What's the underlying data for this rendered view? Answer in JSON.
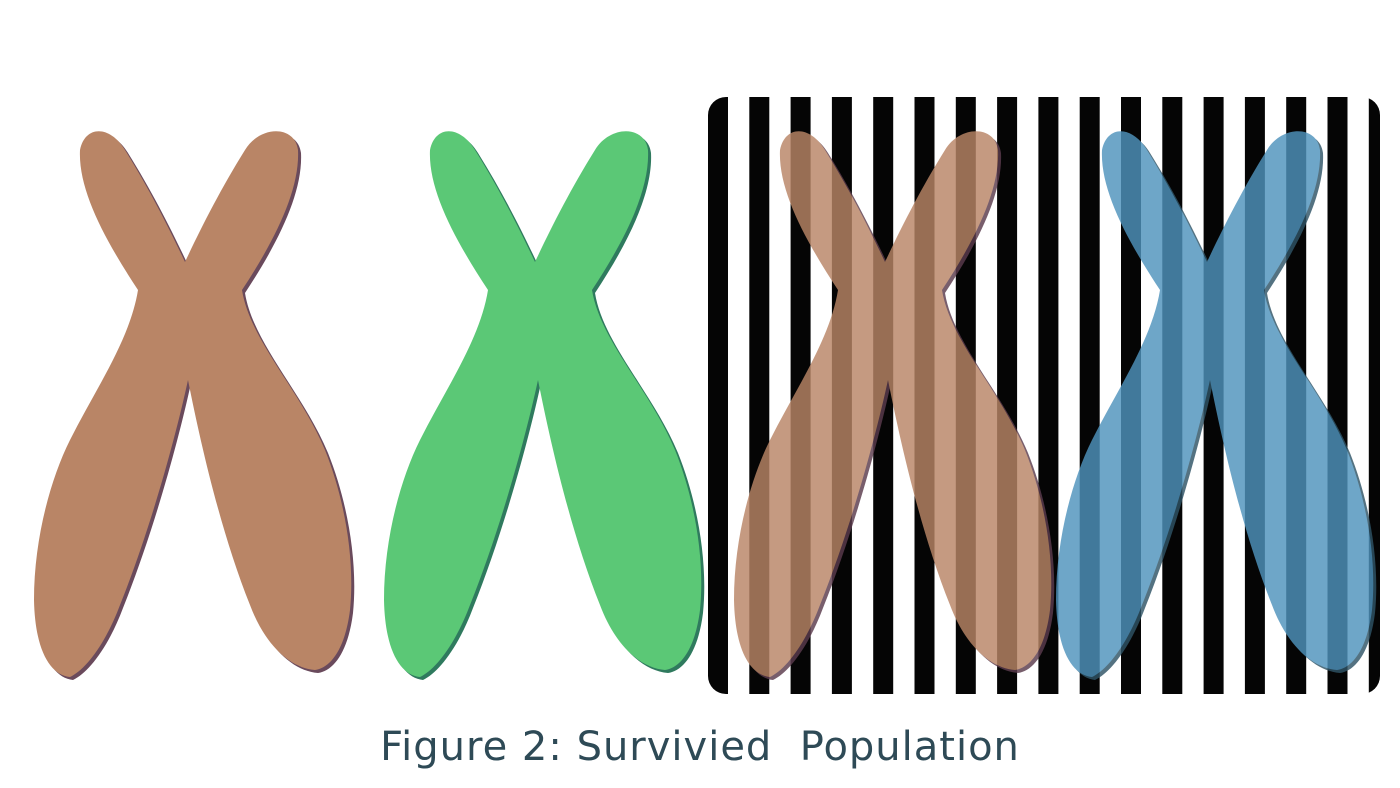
{
  "figure": {
    "caption": "Figure 2: Survivied  Population",
    "caption_color": "#2e4a56"
  },
  "chromosomes": [
    {
      "id": "chromosome-1",
      "color": "#b98566",
      "shade": "#6a4a5c",
      "striped": false
    },
    {
      "id": "chromosome-2",
      "color": "#5bc876",
      "shade": "#2f7a5e",
      "striped": false
    },
    {
      "id": "chromosome-3",
      "color": "#b98566",
      "shade": "#5b3b4d",
      "striped": true
    },
    {
      "id": "chromosome-4",
      "color": "#4f93bd",
      "shade": "#2f5466",
      "striped": true
    }
  ],
  "stripe_panel": {
    "stripe_color": "#050505",
    "background_color": "#ffffff",
    "stripe_count": 16
  }
}
